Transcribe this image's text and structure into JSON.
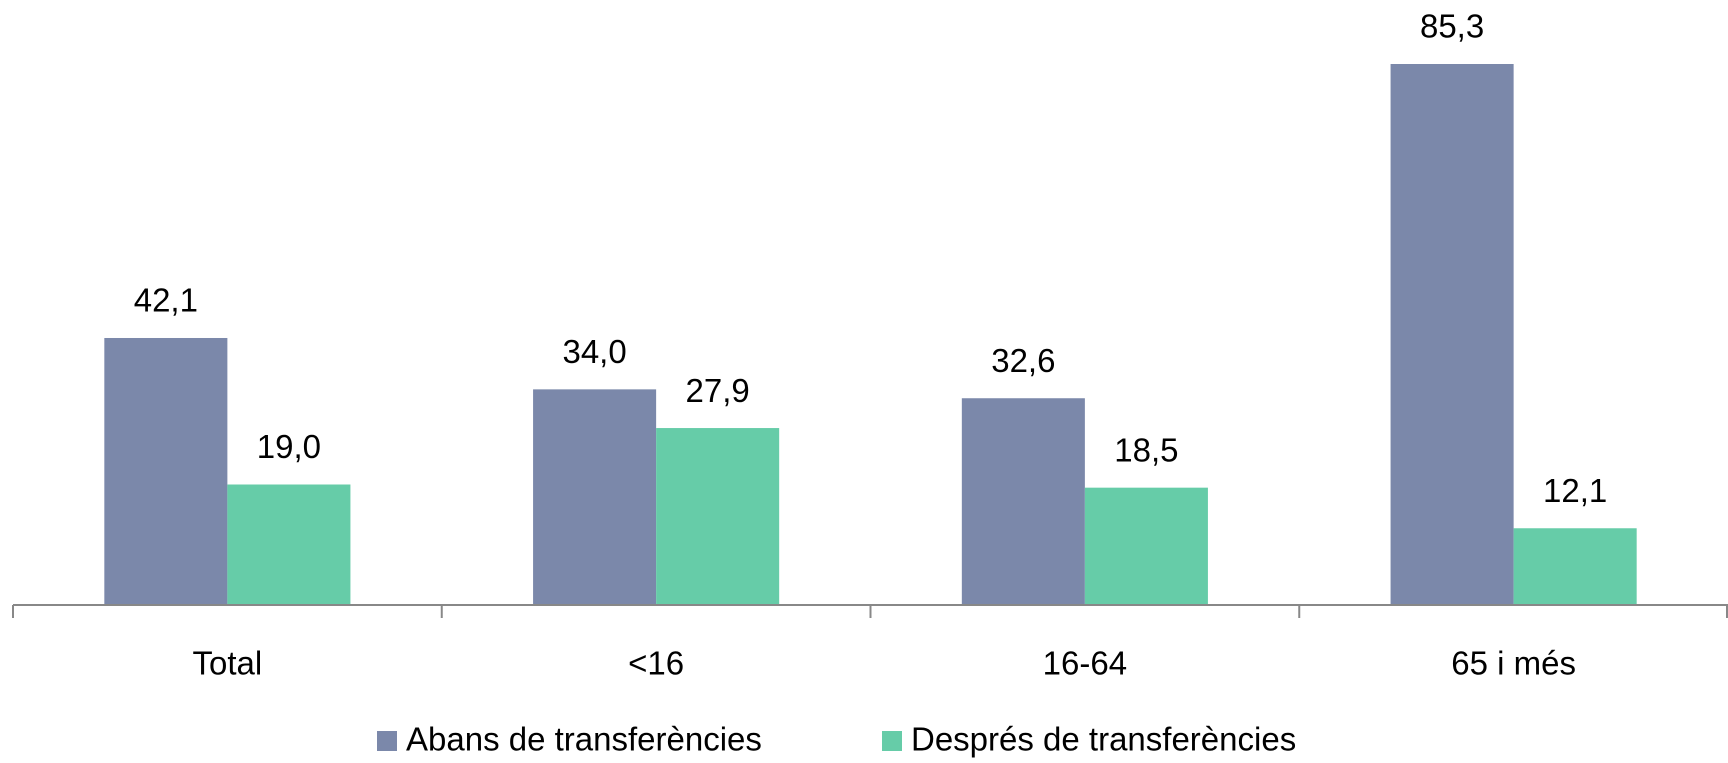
{
  "chart_data": {
    "type": "bar",
    "categories": [
      "Total",
      "<16",
      "16-64",
      "65 i més"
    ],
    "series": [
      {
        "name": "Abans de transferències",
        "color": "#7b88aa",
        "values": [
          42.1,
          34.0,
          32.6,
          85.3
        ],
        "value_labels": [
          "42,1",
          "34,0",
          "32,6",
          "85,3"
        ]
      },
      {
        "name": "Després de transferències",
        "color": "#66cca8",
        "values": [
          19.0,
          27.9,
          18.5,
          12.1
        ],
        "value_labels": [
          "19,0",
          "27,9",
          "18,5",
          "12,1"
        ]
      }
    ],
    "legend": "bottom"
  }
}
